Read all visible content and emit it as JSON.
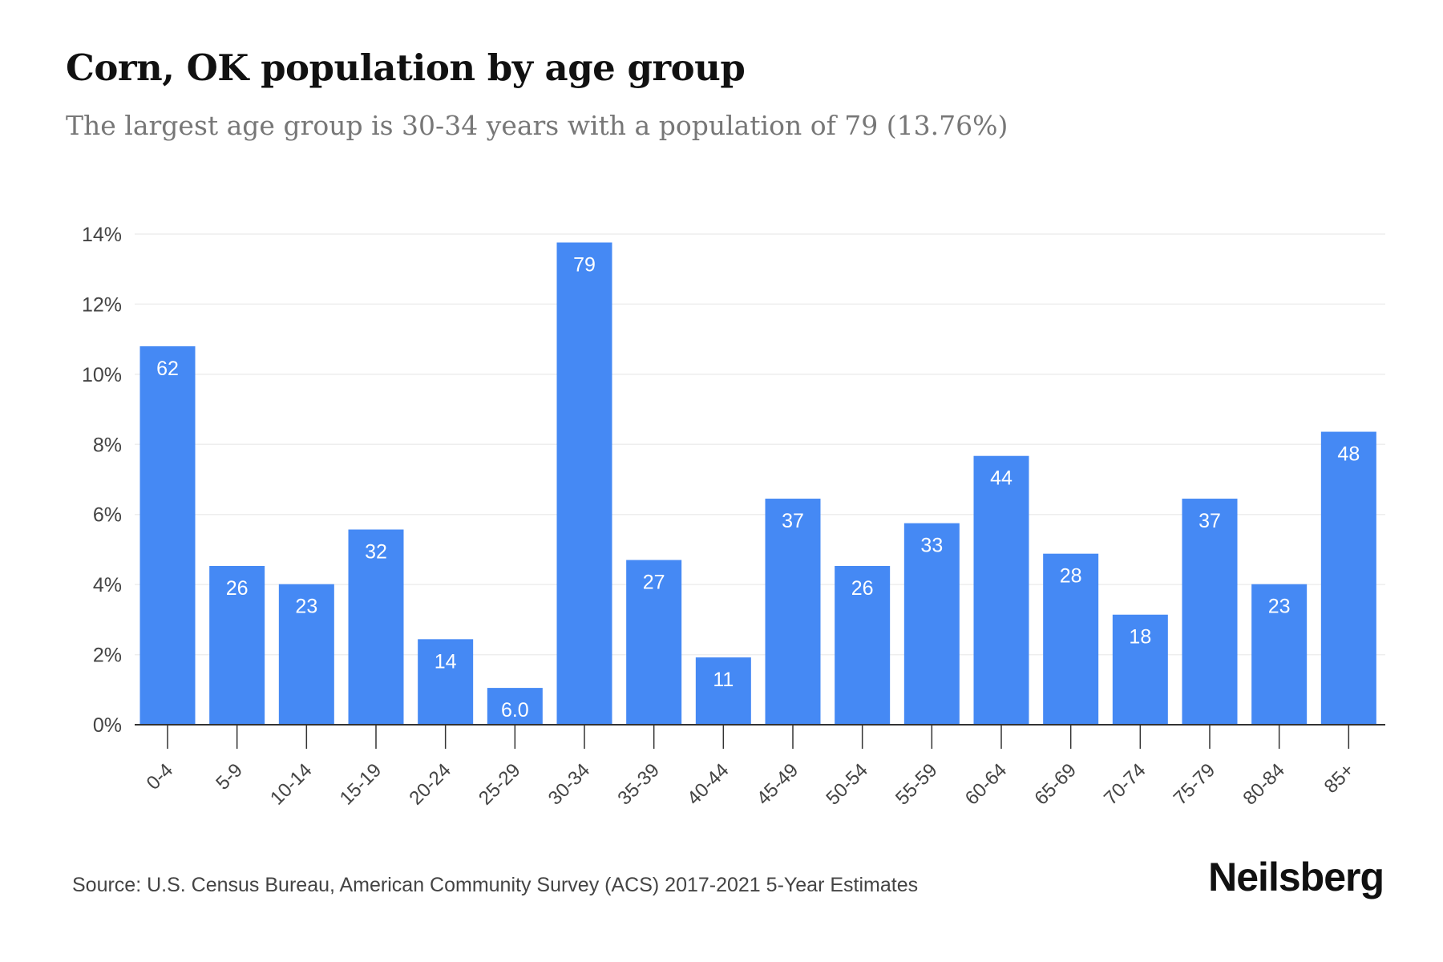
{
  "title": "Corn, OK population by age group",
  "subtitle": "The largest age group is 30-34 years with a population of 79 (13.76%)",
  "source": "Source: U.S. Census Bureau, American Community Survey (ACS) 2017-2021 5-Year Estimates",
  "brand": "Neilsberg",
  "colors": {
    "bar": "#4589f4",
    "bar_label": "#ffffff",
    "grid": "#eeeeee",
    "axis": "#333333",
    "tick_text": "#444444"
  },
  "chart_data": {
    "type": "bar",
    "categories": [
      "0-4",
      "5-9",
      "10-14",
      "15-19",
      "20-24",
      "25-29",
      "30-34",
      "35-39",
      "40-44",
      "45-49",
      "50-54",
      "55-59",
      "60-64",
      "65-69",
      "70-74",
      "75-79",
      "80-84",
      "85+"
    ],
    "values": [
      10.8,
      4.53,
      4.01,
      5.57,
      2.44,
      1.05,
      13.76,
      4.7,
      1.92,
      6.45,
      4.53,
      5.75,
      7.67,
      4.88,
      3.14,
      6.45,
      4.01,
      8.36
    ],
    "data_labels": [
      "62",
      "26",
      "23",
      "32",
      "14",
      "6.0",
      "79",
      "27",
      "11",
      "37",
      "26",
      "33",
      "44",
      "28",
      "18",
      "37",
      "23",
      "48"
    ],
    "y_ticks": [
      "0%",
      "2%",
      "4%",
      "6%",
      "8%",
      "10%",
      "12%",
      "14%"
    ],
    "ylim": [
      0,
      14
    ],
    "xlabel": "",
    "ylabel": "",
    "grid": true,
    "legend": "none"
  }
}
